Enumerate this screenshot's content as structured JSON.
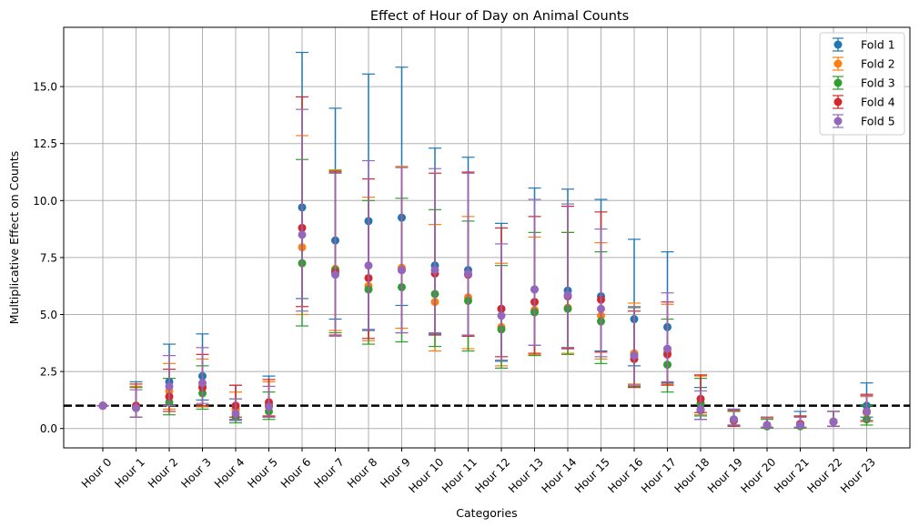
{
  "chart_data": {
    "type": "scatter",
    "title": "Effect of Hour of Day on Animal Counts",
    "xlabel": "Categories",
    "ylabel": "Multiplicative Effect on Counts",
    "categories": [
      "Hour 0",
      "Hour 1",
      "Hour 2",
      "Hour 3",
      "Hour 4",
      "Hour 5",
      "Hour 6",
      "Hour 7",
      "Hour 8",
      "Hour 9",
      "Hour 10",
      "Hour 11",
      "Hour 12",
      "Hour 13",
      "Hour 14",
      "Hour 15",
      "Hour 16",
      "Hour 17",
      "Hour 18",
      "Hour 19",
      "Hour 20",
      "Hour 21",
      "Hour 22",
      "Hour 23"
    ],
    "ylim": [
      -0.85,
      17.6
    ],
    "yticks": [
      0.0,
      2.5,
      5.0,
      7.5,
      10.0,
      12.5,
      15.0
    ],
    "ytick_labels": [
      "0.0",
      "2.5",
      "5.0",
      "7.5",
      "10.0",
      "12.5",
      "15.0"
    ],
    "grid": true,
    "legend_position": "top-right",
    "reference_line": {
      "y": 1.0,
      "style": "dashed",
      "color": "#000000"
    },
    "series": [
      {
        "name": "Fold 1",
        "color": "#1f77b4",
        "values": [
          1.0,
          0.95,
          2.05,
          2.3,
          0.85,
          1.05,
          9.7,
          8.25,
          9.1,
          9.25,
          7.15,
          6.95,
          5.25,
          6.1,
          6.05,
          5.8,
          4.8,
          4.45,
          0.8,
          0.4,
          0.15,
          0.2,
          0.3,
          1.0
        ],
        "lower": [
          1.0,
          0.5,
          1.0,
          1.25,
          0.4,
          0.5,
          5.7,
          4.8,
          4.3,
          5.4,
          4.15,
          4.05,
          2.95,
          3.65,
          3.55,
          3.4,
          2.75,
          2.0,
          0.4,
          0.15,
          0.05,
          0.05,
          0.1,
          0.5
        ],
        "upper": [
          1.0,
          2.05,
          3.7,
          4.15,
          1.9,
          2.3,
          16.5,
          14.05,
          15.55,
          15.85,
          12.3,
          11.9,
          9.0,
          10.55,
          10.5,
          10.05,
          8.3,
          7.75,
          1.8,
          0.85,
          0.5,
          0.75,
          0.75,
          2.0
        ]
      },
      {
        "name": "Fold 2",
        "color": "#ff7f0e",
        "values": [
          1.0,
          0.95,
          1.65,
          1.85,
          0.8,
          1.05,
          7.95,
          7.0,
          6.25,
          7.05,
          5.55,
          5.75,
          4.45,
          5.2,
          5.3,
          4.95,
          3.3,
          3.35,
          1.1,
          0.35,
          0.1,
          0.2,
          0.3,
          0.7
        ],
        "lower": [
          1.0,
          0.5,
          0.85,
          0.95,
          0.35,
          0.5,
          5.0,
          4.3,
          3.85,
          4.4,
          3.4,
          3.5,
          2.75,
          3.25,
          3.3,
          3.05,
          1.95,
          1.95,
          0.6,
          0.15,
          0.05,
          0.05,
          0.1,
          0.3
        ],
        "upper": [
          1.0,
          1.85,
          2.85,
          3.05,
          1.6,
          2.05,
          12.85,
          11.35,
          10.15,
          11.5,
          8.95,
          9.3,
          7.25,
          8.4,
          8.6,
          8.15,
          5.5,
          5.45,
          2.3,
          0.75,
          0.45,
          0.55,
          0.75,
          1.4
        ]
      },
      {
        "name": "Fold 3",
        "color": "#2ca02c",
        "values": [
          1.0,
          0.9,
          1.15,
          1.55,
          0.5,
          0.75,
          7.25,
          6.95,
          6.1,
          6.2,
          5.9,
          5.6,
          4.35,
          5.1,
          5.25,
          4.7,
          3.2,
          2.8,
          1.1,
          0.35,
          0.1,
          0.1,
          0.3,
          0.4
        ],
        "lower": [
          1.0,
          0.5,
          0.6,
          0.85,
          0.25,
          0.4,
          4.5,
          4.2,
          3.7,
          3.8,
          3.6,
          3.4,
          2.65,
          3.2,
          3.25,
          2.85,
          1.85,
          1.6,
          0.55,
          0.1,
          0.02,
          0.02,
          0.1,
          0.15
        ],
        "upper": [
          1.0,
          1.8,
          2.2,
          2.75,
          1.3,
          1.6,
          11.8,
          11.3,
          10.0,
          10.1,
          9.6,
          9.1,
          7.15,
          8.6,
          8.6,
          7.75,
          5.3,
          4.8,
          2.2,
          0.75,
          0.4,
          0.5,
          0.75,
          1.0
        ]
      },
      {
        "name": "Fold 4",
        "color": "#d62728",
        "values": [
          1.0,
          1.0,
          1.4,
          1.8,
          1.0,
          1.15,
          8.8,
          6.85,
          6.6,
          6.95,
          6.8,
          6.75,
          5.25,
          5.55,
          5.8,
          5.65,
          3.05,
          3.25,
          1.3,
          0.35,
          0.15,
          0.2,
          0.3,
          0.75
        ],
        "lower": [
          1.0,
          0.5,
          0.75,
          1.0,
          0.5,
          0.55,
          5.35,
          4.1,
          3.95,
          4.2,
          4.1,
          4.05,
          3.15,
          3.3,
          3.5,
          3.35,
          1.8,
          1.9,
          0.7,
          0.1,
          0.05,
          0.05,
          0.1,
          0.35
        ],
        "upper": [
          1.0,
          1.95,
          2.6,
          3.25,
          1.9,
          2.15,
          14.55,
          11.25,
          10.95,
          11.45,
          11.2,
          11.25,
          8.8,
          9.3,
          9.75,
          9.5,
          5.15,
          5.55,
          2.35,
          0.8,
          0.5,
          0.55,
          0.75,
          1.5
        ]
      },
      {
        "name": "Fold 5",
        "color": "#9467bd",
        "values": [
          1.0,
          0.9,
          1.85,
          2.0,
          0.65,
          0.95,
          8.5,
          6.75,
          7.15,
          6.95,
          6.95,
          6.8,
          4.95,
          6.1,
          5.85,
          5.25,
          3.2,
          3.5,
          0.85,
          0.4,
          0.15,
          0.15,
          0.3,
          0.75
        ],
        "lower": [
          1.0,
          0.5,
          1.0,
          1.1,
          0.35,
          0.5,
          5.15,
          4.05,
          4.35,
          4.2,
          4.2,
          4.1,
          3.0,
          3.65,
          3.55,
          3.15,
          1.9,
          2.05,
          0.4,
          0.15,
          0.05,
          0.05,
          0.1,
          0.35
        ],
        "upper": [
          1.0,
          1.7,
          3.2,
          3.55,
          1.3,
          1.85,
          14.0,
          11.2,
          11.75,
          11.45,
          11.4,
          11.2,
          8.1,
          10.05,
          9.85,
          8.75,
          5.35,
          5.95,
          1.65,
          0.85,
          0.5,
          0.5,
          0.75,
          1.45
        ]
      }
    ]
  }
}
